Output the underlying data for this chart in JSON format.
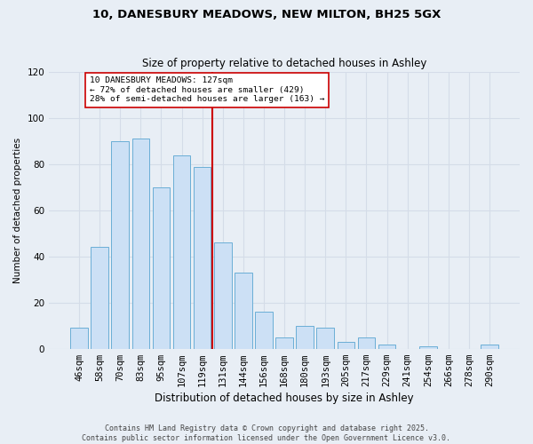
{
  "title1": "10, DANESBURY MEADOWS, NEW MILTON, BH25 5GX",
  "title2": "Size of property relative to detached houses in Ashley",
  "xlabel": "Distribution of detached houses by size in Ashley",
  "ylabel": "Number of detached properties",
  "bar_labels": [
    "46sqm",
    "58sqm",
    "70sqm",
    "83sqm",
    "95sqm",
    "107sqm",
    "119sqm",
    "131sqm",
    "144sqm",
    "156sqm",
    "168sqm",
    "180sqm",
    "193sqm",
    "205sqm",
    "217sqm",
    "229sqm",
    "241sqm",
    "254sqm",
    "266sqm",
    "278sqm",
    "290sqm"
  ],
  "bar_values": [
    9,
    44,
    90,
    91,
    70,
    84,
    79,
    46,
    33,
    16,
    5,
    10,
    9,
    3,
    5,
    2,
    0,
    1,
    0,
    0,
    2
  ],
  "bar_color": "#cce0f5",
  "bar_edge_color": "#6aaed6",
  "vline_x": 7.0,
  "vline_color": "#cc0000",
  "annotation_text": "10 DANESBURY MEADOWS: 127sqm\n← 72% of detached houses are smaller (429)\n28% of semi-detached houses are larger (163) →",
  "annotation_box_color": "#ffffff",
  "annotation_box_edge": "#cc0000",
  "ylim": [
    0,
    120
  ],
  "yticks": [
    0,
    20,
    40,
    60,
    80,
    100,
    120
  ],
  "grid_color": "#d4dce8",
  "background_color": "#e8eef5",
  "footer1": "Contains HM Land Registry data © Crown copyright and database right 2025.",
  "footer2": "Contains public sector information licensed under the Open Government Licence v3.0."
}
